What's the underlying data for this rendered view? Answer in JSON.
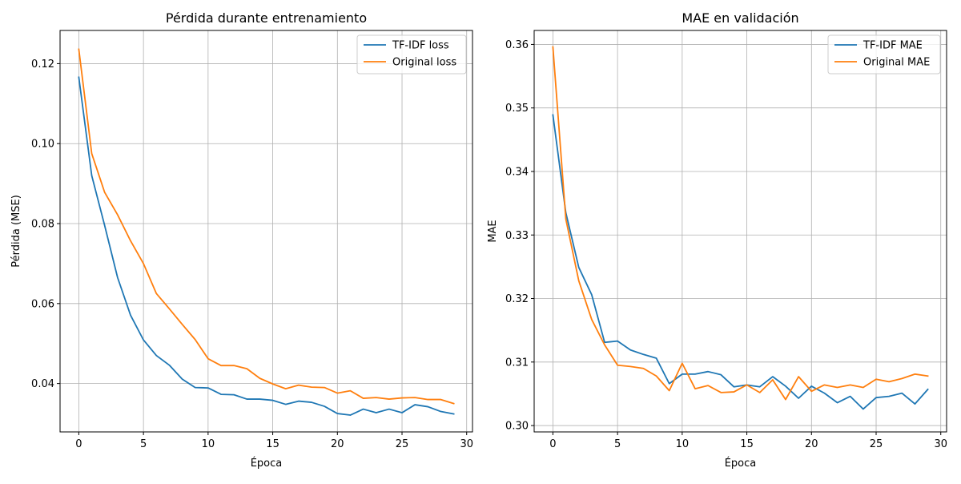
{
  "chart_data": [
    {
      "type": "line",
      "title": "Pérdida durante entrenamiento",
      "xlabel": "Época",
      "ylabel": "Pérdida (MSE)",
      "xlim": [
        -1.45,
        30.45
      ],
      "ylim": [
        0.0279,
        0.1283
      ],
      "grid": true,
      "legend_position": "top-right",
      "x": [
        0,
        1,
        2,
        3,
        4,
        5,
        6,
        7,
        8,
        9,
        10,
        11,
        12,
        13,
        14,
        15,
        16,
        17,
        18,
        19,
        20,
        21,
        22,
        23,
        24,
        25,
        26,
        27,
        28,
        29
      ],
      "xticks": [
        {
          "value": 0,
          "label": "0"
        },
        {
          "value": 5,
          "label": "5"
        },
        {
          "value": 10,
          "label": "10"
        },
        {
          "value": 15,
          "label": "15"
        },
        {
          "value": 20,
          "label": "20"
        },
        {
          "value": 25,
          "label": "25"
        },
        {
          "value": 30,
          "label": "30"
        }
      ],
      "yticks": [
        {
          "value": 0.04,
          "label": "0.04"
        },
        {
          "value": 0.06,
          "label": "0.06"
        },
        {
          "value": 0.08,
          "label": "0.08"
        },
        {
          "value": 0.1,
          "label": "0.10"
        },
        {
          "value": 0.12,
          "label": "0.12"
        }
      ],
      "series": [
        {
          "name": "TF-IDF loss",
          "color": "#1f77b4",
          "values": [
            0.1166,
            0.092,
            0.0795,
            0.0665,
            0.0571,
            0.0509,
            0.047,
            0.0446,
            0.0411,
            0.039,
            0.0389,
            0.0373,
            0.0372,
            0.0361,
            0.0361,
            0.0358,
            0.0348,
            0.0356,
            0.0353,
            0.0343,
            0.0325,
            0.0321,
            0.0336,
            0.0327,
            0.0336,
            0.0327,
            0.0347,
            0.0342,
            0.033,
            0.0324
          ]
        },
        {
          "name": "Original loss",
          "color": "#ff7f0e",
          "values": [
            0.1236,
            0.0975,
            0.0878,
            0.0822,
            0.0757,
            0.07,
            0.0625,
            0.0587,
            0.0548,
            0.051,
            0.0462,
            0.0445,
            0.0445,
            0.0437,
            0.0413,
            0.0399,
            0.0387,
            0.0396,
            0.0391,
            0.039,
            0.0376,
            0.0382,
            0.0363,
            0.0365,
            0.0361,
            0.0364,
            0.0365,
            0.036,
            0.036,
            0.035
          ]
        }
      ]
    },
    {
      "type": "line",
      "title": "MAE en validación",
      "xlabel": "Época",
      "ylabel": "MAE",
      "xlim": [
        -1.45,
        30.45
      ],
      "ylim": [
        0.299,
        0.3622
      ],
      "grid": true,
      "legend_position": "top-right",
      "x": [
        0,
        1,
        2,
        3,
        4,
        5,
        6,
        7,
        8,
        9,
        10,
        11,
        12,
        13,
        14,
        15,
        16,
        17,
        18,
        19,
        20,
        21,
        22,
        23,
        24,
        25,
        26,
        27,
        28,
        29
      ],
      "xticks": [
        {
          "value": 0,
          "label": "0"
        },
        {
          "value": 5,
          "label": "5"
        },
        {
          "value": 10,
          "label": "10"
        },
        {
          "value": 15,
          "label": "15"
        },
        {
          "value": 20,
          "label": "20"
        },
        {
          "value": 25,
          "label": "25"
        },
        {
          "value": 30,
          "label": "30"
        }
      ],
      "yticks": [
        {
          "value": 0.3,
          "label": "0.30"
        },
        {
          "value": 0.31,
          "label": "0.31"
        },
        {
          "value": 0.32,
          "label": "0.32"
        },
        {
          "value": 0.33,
          "label": "0.33"
        },
        {
          "value": 0.34,
          "label": "0.34"
        },
        {
          "value": 0.35,
          "label": "0.35"
        },
        {
          "value": 0.36,
          "label": "0.36"
        }
      ],
      "series": [
        {
          "name": "TF-IDF MAE",
          "color": "#1f77b4",
          "values": [
            0.3489,
            0.3335,
            0.3249,
            0.3206,
            0.3131,
            0.3133,
            0.3119,
            0.3112,
            0.3106,
            0.3066,
            0.3081,
            0.3081,
            0.3085,
            0.308,
            0.3061,
            0.3064,
            0.3061,
            0.3077,
            0.3062,
            0.3043,
            0.3062,
            0.3051,
            0.3036,
            0.3046,
            0.3026,
            0.3044,
            0.3046,
            0.3051,
            0.3034,
            0.3057
          ]
        },
        {
          "name": "Original MAE",
          "color": "#ff7f0e",
          "values": [
            0.3596,
            0.3325,
            0.3228,
            0.3167,
            0.3127,
            0.3095,
            0.3093,
            0.309,
            0.3078,
            0.3055,
            0.3098,
            0.3058,
            0.3063,
            0.3052,
            0.3053,
            0.3064,
            0.3052,
            0.3072,
            0.3041,
            0.3077,
            0.3054,
            0.3064,
            0.306,
            0.3064,
            0.306,
            0.3073,
            0.3069,
            0.3074,
            0.3081,
            0.3078
          ]
        }
      ]
    }
  ]
}
